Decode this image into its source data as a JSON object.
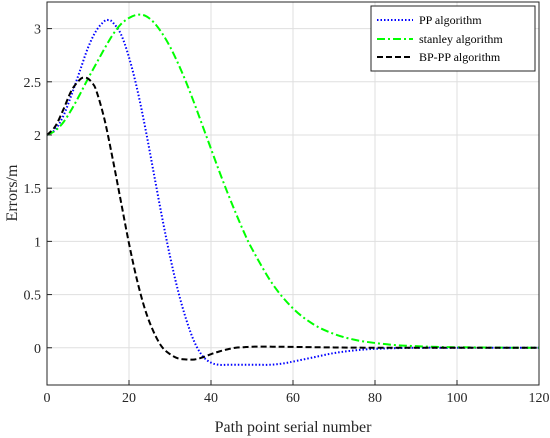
{
  "chart_data": {
    "type": "line",
    "xlabel": "Path point serial number",
    "ylabel": "Errors/m",
    "xlim": [
      0,
      120
    ],
    "ylim": [
      -0.35,
      3.25
    ],
    "xticks": [
      0,
      20,
      40,
      60,
      80,
      100,
      120
    ],
    "yticks": [
      0,
      0.5,
      1,
      1.5,
      2,
      2.5,
      3
    ],
    "grid": true,
    "legend_position": "top-right",
    "series": [
      {
        "name": "PP algorithm",
        "color": "#0000ff",
        "style": "dotted",
        "x": [
          0,
          2,
          4,
          6,
          8,
          10,
          12,
          14,
          15,
          16,
          18,
          20,
          22,
          24,
          26,
          28,
          30,
          32,
          34,
          36,
          38,
          40,
          42,
          44,
          46,
          48,
          50,
          52,
          54,
          56,
          58,
          60,
          65,
          70,
          75,
          80,
          90,
          100,
          110,
          120
        ],
        "y": [
          2.0,
          2.05,
          2.18,
          2.38,
          2.6,
          2.82,
          2.98,
          3.07,
          3.08,
          3.06,
          2.95,
          2.73,
          2.43,
          2.06,
          1.65,
          1.24,
          0.86,
          0.53,
          0.26,
          0.05,
          -0.08,
          -0.14,
          -0.16,
          -0.16,
          -0.16,
          -0.16,
          -0.16,
          -0.16,
          -0.16,
          -0.155,
          -0.145,
          -0.13,
          -0.09,
          -0.05,
          -0.025,
          -0.01,
          0.0,
          0.0,
          0.0,
          0.0
        ]
      },
      {
        "name": "stanley algorithm",
        "color": "#00ff00",
        "style": "dashdot",
        "x": [
          0,
          2,
          4,
          6,
          8,
          10,
          12,
          14,
          16,
          18,
          20,
          22,
          24,
          26,
          28,
          30,
          32,
          34,
          36,
          38,
          40,
          42,
          44,
          46,
          48,
          50,
          55,
          60,
          65,
          70,
          75,
          80,
          85,
          90,
          95,
          100,
          110,
          120
        ],
        "y": [
          2.0,
          2.04,
          2.12,
          2.24,
          2.38,
          2.53,
          2.67,
          2.81,
          2.94,
          3.04,
          3.1,
          3.13,
          3.12,
          3.06,
          2.96,
          2.83,
          2.67,
          2.49,
          2.29,
          2.08,
          1.87,
          1.66,
          1.46,
          1.27,
          1.09,
          0.93,
          0.6,
          0.37,
          0.22,
          0.13,
          0.075,
          0.045,
          0.025,
          0.015,
          0.008,
          0.005,
          0.001,
          0.0
        ]
      },
      {
        "name": "BP-PP algorithm",
        "color": "#000000",
        "style": "dashed",
        "x": [
          0,
          2,
          4,
          6,
          8,
          9,
          10,
          11,
          12,
          14,
          16,
          18,
          20,
          22,
          24,
          26,
          28,
          30,
          32,
          34,
          36,
          38,
          40,
          42,
          44,
          46,
          48,
          50,
          55,
          60,
          70,
          80,
          90,
          100,
          110,
          120
        ],
        "y": [
          2.0,
          2.08,
          2.24,
          2.42,
          2.52,
          2.54,
          2.53,
          2.49,
          2.42,
          2.15,
          1.78,
          1.38,
          0.98,
          0.63,
          0.35,
          0.15,
          0.01,
          -0.06,
          -0.1,
          -0.11,
          -0.11,
          -0.09,
          -0.06,
          -0.035,
          -0.015,
          0.0,
          0.005,
          0.01,
          0.01,
          0.008,
          0.003,
          0.0,
          0.0,
          0.0,
          0.0,
          0.0
        ]
      }
    ]
  }
}
